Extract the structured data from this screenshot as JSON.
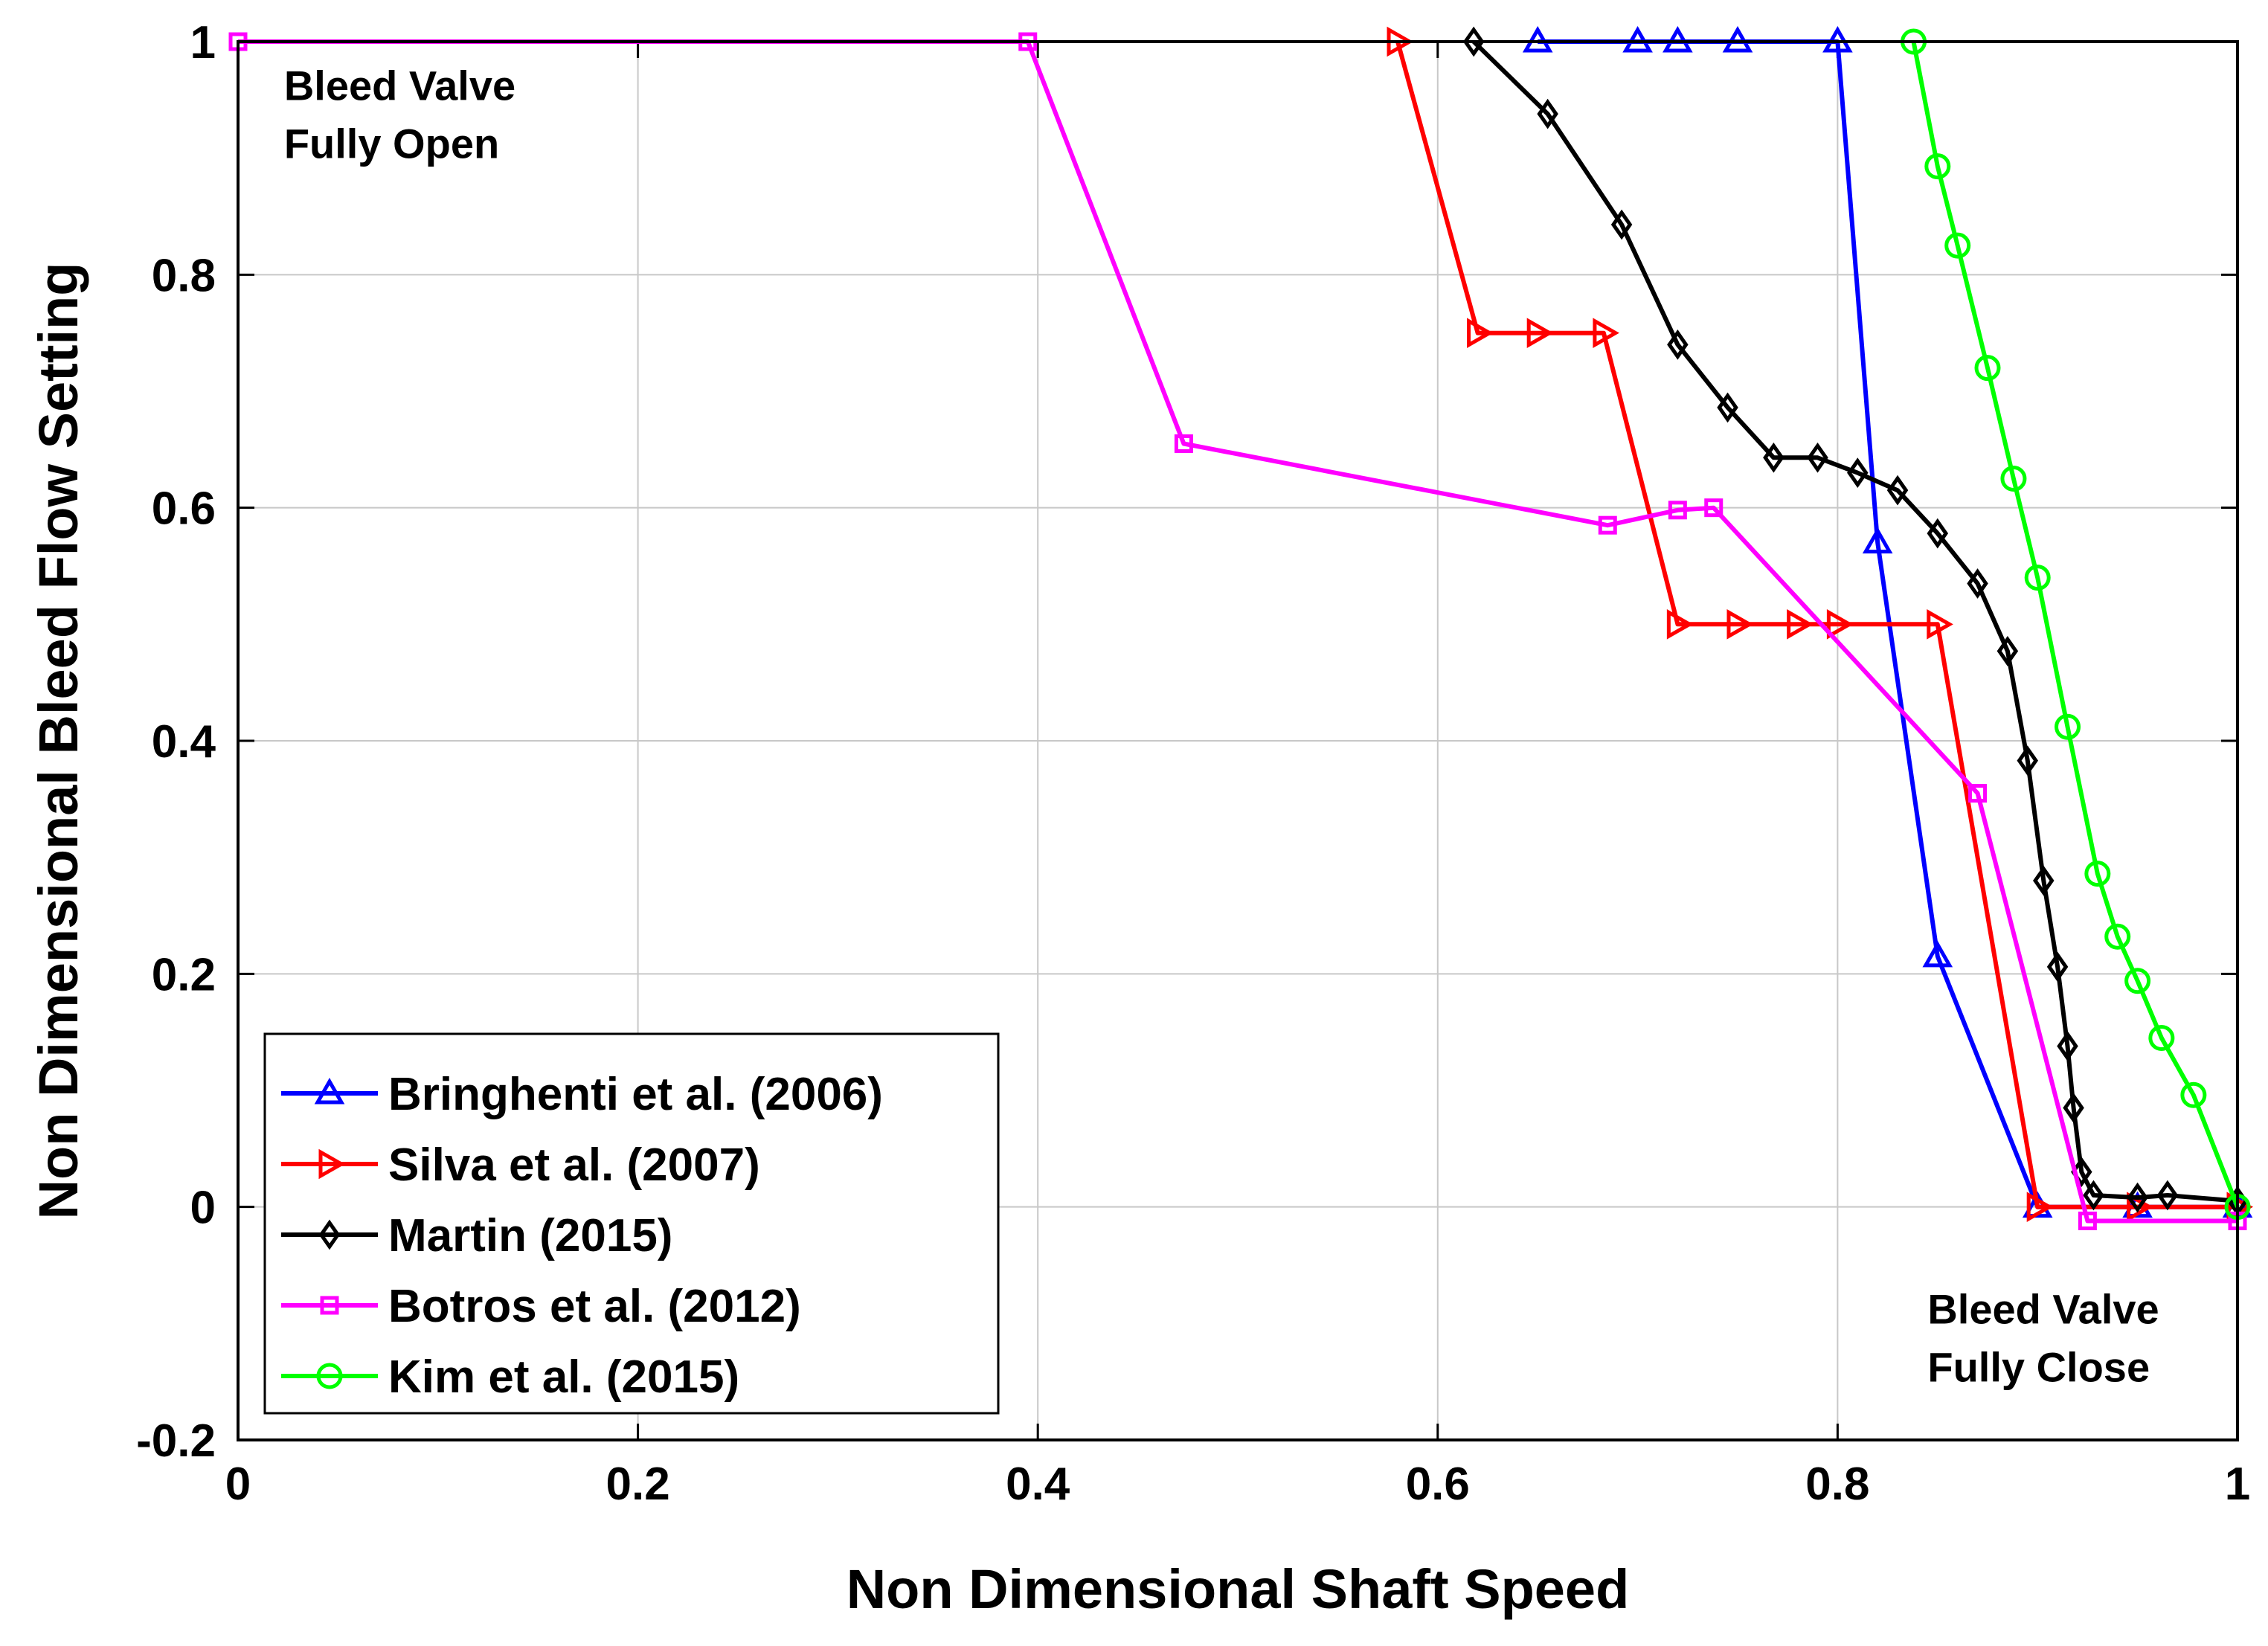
{
  "chart_data": {
    "type": "line",
    "title": "",
    "xlabel": "Non Dimensional Shaft Speed",
    "ylabel": "Non Dimensional Bleed Flow Setting",
    "xlim": [
      0,
      1
    ],
    "ylim": [
      -0.2,
      1
    ],
    "xticks": [
      0,
      0.2,
      0.4,
      0.6,
      0.8,
      1
    ],
    "xtick_labels": [
      "0",
      "0.2",
      "0.4",
      "0.6",
      "0.8",
      "1"
    ],
    "yticks": [
      -0.2,
      0,
      0.2,
      0.4,
      0.6,
      0.8,
      1
    ],
    "ytick_labels": [
      "-0.2",
      "0",
      "0.2",
      "0.4",
      "0.6",
      "0.8",
      "1"
    ],
    "grid": true,
    "legend_position": "bottom-left",
    "annotations": [
      {
        "lines": [
          "Bleed Valve",
          "Fully Open"
        ],
        "x": 0.023,
        "y": 0.95
      },
      {
        "lines": [
          "Bleed Valve",
          "Fully Close"
        ],
        "x": 0.845,
        "y": -0.1
      }
    ],
    "series": [
      {
        "name": "Bringhenti et al. (2006)",
        "color": "#0000ff",
        "marker": "triangle-up",
        "x": [
          0.65,
          0.7,
          0.72,
          0.75,
          0.8,
          0.82,
          0.85,
          0.9,
          0.95,
          1.0
        ],
        "y": [
          1,
          1,
          1,
          1,
          1,
          0.57,
          0.215,
          0,
          0,
          0
        ]
      },
      {
        "name": "Silva et al. (2007)",
        "color": "#ff0000",
        "marker": "triangle-right",
        "x": [
          0.58,
          0.62,
          0.65,
          0.683,
          0.72,
          0.75,
          0.78,
          0.8,
          0.85,
          0.9,
          0.95,
          1.0
        ],
        "y": [
          1,
          0.75,
          0.75,
          0.75,
          0.5,
          0.5,
          0.5,
          0.5,
          0.5,
          0,
          0,
          0
        ]
      },
      {
        "name": "Martin (2015)",
        "color": "#000000",
        "marker": "diamond",
        "x": [
          0.618,
          0.655,
          0.692,
          0.72,
          0.745,
          0.768,
          0.79,
          0.81,
          0.83,
          0.85,
          0.87,
          0.885,
          0.895,
          0.903,
          0.91,
          0.915,
          0.918,
          0.922,
          0.928,
          0.95,
          0.965,
          1.0
        ],
        "y": [
          1,
          0.938,
          0.843,
          0.74,
          0.686,
          0.643,
          0.643,
          0.63,
          0.615,
          0.578,
          0.535,
          0.477,
          0.383,
          0.28,
          0.206,
          0.138,
          0.085,
          0.03,
          0.01,
          0.008,
          0.01,
          0.005
        ]
      },
      {
        "name": "Botros et al. (2012)",
        "color": "#ff00ff",
        "marker": "square",
        "x": [
          0.0,
          0.395,
          0.473,
          0.685,
          0.72,
          0.738,
          0.87,
          0.925,
          1.0
        ],
        "y": [
          1,
          1,
          0.655,
          0.585,
          0.598,
          0.6,
          0.355,
          -0.012,
          -0.012
        ]
      },
      {
        "name": "Kim et al. (2015)",
        "color": "#00ff00",
        "marker": "circle",
        "x": [
          0.838,
          0.85,
          0.86,
          0.875,
          0.888,
          0.9,
          0.915,
          0.93,
          0.94,
          0.95,
          0.962,
          0.978,
          1.0
        ],
        "y": [
          1,
          0.893,
          0.825,
          0.72,
          0.625,
          0.54,
          0.412,
          0.286,
          0.232,
          0.194,
          0.145,
          0.096,
          0.0
        ]
      }
    ]
  }
}
